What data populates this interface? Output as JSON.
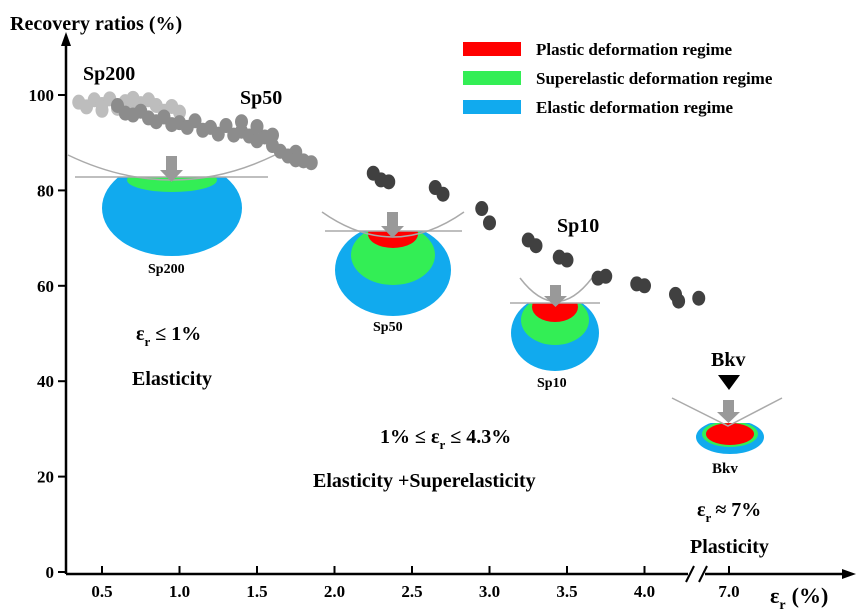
{
  "chart_data": {
    "type": "scatter",
    "title": "",
    "ylabel": "Recovery ratios (%)",
    "xlabel": "ε",
    "xlabel_sub": "r",
    "xlabel_unit": "(%)",
    "ylim": [
      0,
      105
    ],
    "yticks": [
      0,
      20,
      40,
      60,
      80,
      100
    ],
    "xticks": [
      0.5,
      1.0,
      1.5,
      2.0,
      2.5,
      3.0,
      3.5,
      4.0,
      7.0
    ],
    "xtick_labels": [
      "0.5",
      "1.0",
      "1.5",
      "2.0",
      "2.5",
      "3.0",
      "3.5",
      "4.0",
      "7.0"
    ],
    "axis_break": "after 4.0, before 7.0",
    "legend_position": "top-right",
    "legend": [
      {
        "label": "Plastic deformation regime",
        "color": "#ff0000"
      },
      {
        "label": "Superelastic deformation regime",
        "color": "#33ee55"
      },
      {
        "label": "Elastic deformation regime",
        "color": "#11aaee"
      }
    ],
    "series": [
      {
        "name": "Sp200",
        "color": "#bdbdbd",
        "points": [
          [
            0.35,
            98.5
          ],
          [
            0.4,
            97.5
          ],
          [
            0.45,
            99
          ],
          [
            0.5,
            98
          ],
          [
            0.55,
            99.2
          ],
          [
            0.6,
            97.2
          ],
          [
            0.65,
            98.6
          ],
          [
            0.7,
            96.8
          ],
          [
            0.75,
            98.2
          ],
          [
            0.8,
            99
          ],
          [
            0.85,
            97.8
          ],
          [
            0.9,
            96.6
          ],
          [
            0.95,
            97.6
          ],
          [
            1.0,
            96.4
          ],
          [
            0.5,
            96.8
          ],
          [
            0.7,
            99.3
          ]
        ]
      },
      {
        "name": "Sp50",
        "color": "#8c8c8c",
        "points": [
          [
            0.6,
            97.8
          ],
          [
            0.65,
            96.2
          ],
          [
            0.7,
            95.8
          ],
          [
            0.75,
            96.6
          ],
          [
            0.8,
            95.2
          ],
          [
            0.85,
            94.4
          ],
          [
            0.9,
            95.4
          ],
          [
            0.95,
            93.8
          ],
          [
            1.0,
            94.2
          ],
          [
            1.05,
            93.2
          ],
          [
            1.1,
            94.6
          ],
          [
            1.15,
            92.6
          ],
          [
            1.2,
            93.2
          ],
          [
            1.25,
            91.8
          ],
          [
            1.3,
            93.6
          ],
          [
            1.35,
            91.6
          ],
          [
            1.4,
            92.4
          ],
          [
            1.45,
            91.4
          ],
          [
            1.5,
            90.4
          ],
          [
            1.55,
            91.2
          ],
          [
            1.6,
            89.4
          ],
          [
            1.65,
            88.2
          ],
          [
            1.7,
            87.2
          ],
          [
            1.75,
            88
          ],
          [
            1.8,
            86.2
          ],
          [
            1.85,
            85.8
          ],
          [
            1.4,
            94.4
          ],
          [
            1.5,
            93.4
          ],
          [
            1.6,
            91.6
          ],
          [
            1.75,
            86.4
          ]
        ]
      },
      {
        "name": "Sp10",
        "color": "#404040",
        "points": [
          [
            2.25,
            83.6
          ],
          [
            2.3,
            82.2
          ],
          [
            2.35,
            81.8
          ],
          [
            2.65,
            80.6
          ],
          [
            2.7,
            79.2
          ],
          [
            2.95,
            76.2
          ],
          [
            3.0,
            73.2
          ],
          [
            3.25,
            69.6
          ],
          [
            3.3,
            68.4
          ],
          [
            3.45,
            66
          ],
          [
            3.5,
            65.4
          ],
          [
            3.7,
            61.6
          ],
          [
            3.75,
            62
          ],
          [
            3.95,
            60.4
          ],
          [
            4.0,
            60
          ],
          [
            4.2,
            58.2
          ],
          [
            4.22,
            56.8
          ],
          [
            4.35,
            57.4
          ]
        ]
      }
    ],
    "annotations": {
      "sp200_top": "Sp200",
      "sp50_top": "Sp50",
      "sp10_top": "Sp10",
      "bkv_top": "Bkv",
      "sp200_fig": "Sp200",
      "sp50_fig": "Sp50",
      "sp10_fig": "Sp10",
      "bkv_fig": "Bkv",
      "regime1_eq": "ε",
      "regime1_sub": "r",
      "regime1_rest": " ≤ 1%",
      "regime1_name": "Elasticity",
      "regime2_pre": "1% ≤ ε",
      "regime2_sub": "r",
      "regime2_rest": " ≤ 4.3%",
      "regime2_name": "Elasticity +Superelasticity",
      "regime3_eq": "ε",
      "regime3_sub": "r",
      "regime3_rest": "≈ 7%",
      "regime3_name": "Plasticity"
    }
  }
}
